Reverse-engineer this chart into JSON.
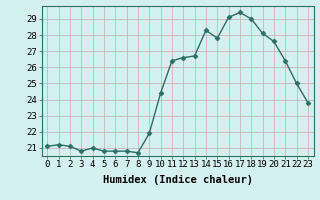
{
  "x": [
    0,
    1,
    2,
    3,
    4,
    5,
    6,
    7,
    8,
    9,
    10,
    11,
    12,
    13,
    14,
    15,
    16,
    17,
    18,
    19,
    20,
    21,
    22,
    23
  ],
  "y": [
    21.1,
    21.2,
    21.1,
    20.8,
    21.0,
    20.8,
    20.8,
    20.8,
    20.7,
    21.9,
    24.4,
    26.4,
    26.6,
    26.7,
    28.3,
    27.8,
    29.1,
    29.4,
    29.0,
    28.1,
    27.6,
    26.4,
    25.0,
    23.8
  ],
  "line_color": "#2d6e65",
  "marker": "D",
  "marker_size": 2.5,
  "linewidth": 1.0,
  "xlabel": "Humidex (Indice chaleur)",
  "ylabel": "",
  "xlim": [
    -0.5,
    23.5
  ],
  "ylim": [
    20.5,
    29.8
  ],
  "yticks": [
    21,
    22,
    23,
    24,
    25,
    26,
    27,
    28,
    29
  ],
  "xticks": [
    0,
    1,
    2,
    3,
    4,
    5,
    6,
    7,
    8,
    9,
    10,
    11,
    12,
    13,
    14,
    15,
    16,
    17,
    18,
    19,
    20,
    21,
    22,
    23
  ],
  "xtick_labels": [
    "0",
    "1",
    "2",
    "3",
    "4",
    "5",
    "6",
    "7",
    "8",
    "9",
    "10",
    "11",
    "12",
    "13",
    "14",
    "15",
    "16",
    "17",
    "18",
    "19",
    "20",
    "21",
    "22",
    "23"
  ],
  "background_color": "#d4f0f0",
  "grid_color": "#c8b8b8",
  "xlabel_fontsize": 7.5,
  "tick_fontsize": 6.5
}
